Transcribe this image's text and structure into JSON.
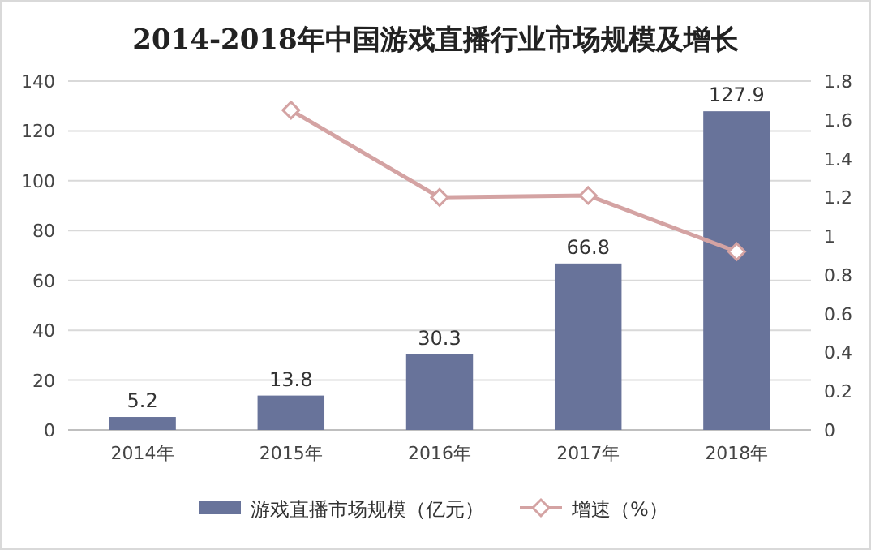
{
  "chart_data": {
    "type": "bar",
    "title": "2014-2018年中国游戏直播行业市场规模及增长",
    "categories": [
      "2014年",
      "2015年",
      "2016年",
      "2017年",
      "2018年"
    ],
    "series": [
      {
        "name": "游戏直播市场规模（亿元）",
        "color": "#68739a",
        "values": [
          5.2,
          13.8,
          30.3,
          66.8,
          127.9
        ],
        "value_labels": [
          "5.2",
          "13.8",
          "30.3",
          "66.8",
          "127.9"
        ]
      },
      {
        "name": "增速（%）",
        "type": "line",
        "axis": "y2",
        "color": "#d4a3a3",
        "marker": "diamond",
        "line_style": "solid",
        "values": [
          null,
          1.65,
          1.2,
          1.21,
          0.92
        ]
      }
    ],
    "ylim": [
      0,
      140
    ],
    "yticks": [
      0,
      20,
      40,
      60,
      80,
      100,
      120,
      140
    ],
    "y2lim": [
      0,
      1.8
    ],
    "y2ticks": [
      0,
      0.2,
      0.4,
      0.6,
      0.8,
      1,
      1.2,
      1.4,
      1.6,
      1.8
    ],
    "grid": "y",
    "legend": "bottom"
  }
}
